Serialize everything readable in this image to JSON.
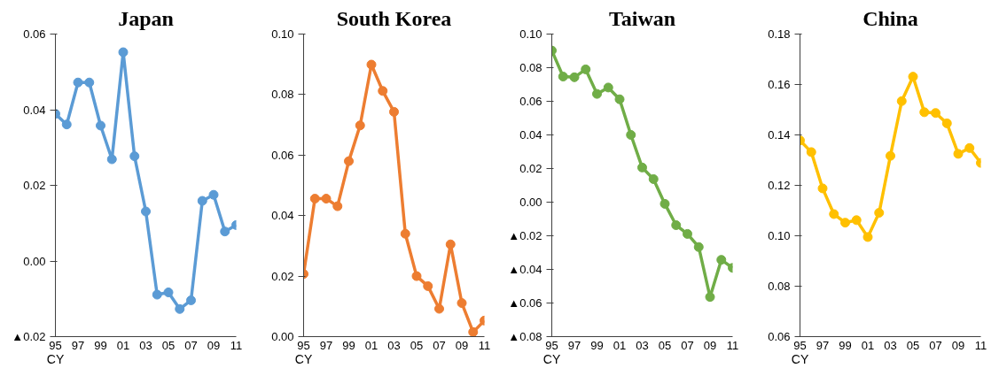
{
  "chart_data": [
    {
      "type": "line",
      "title": "Japan",
      "xlabel": "CY",
      "categories": [
        "95",
        null,
        "97",
        null,
        "99",
        null,
        "01",
        null,
        "03",
        null,
        "05",
        null,
        "07",
        null,
        "09",
        null,
        "11"
      ],
      "marker": "circle",
      "grid": false,
      "ylim": [
        -0.02,
        0.06
      ],
      "yticks": [
        {
          "value": -0.02,
          "label": "▲0.02"
        },
        {
          "value": 0.0,
          "label": "0.00"
        },
        0.02,
        0.04,
        0.06
      ],
      "series": [
        {
          "color": "#5b9bd5",
          "values": [
            0.0389,
            0.0361,
            0.0472,
            0.0472,
            0.0358,
            0.0269,
            0.0552,
            0.0277,
            0.0131,
            -0.0089,
            -0.0083,
            -0.0127,
            -0.0104,
            0.0159,
            0.0175,
            0.0078,
            0.0095
          ]
        }
      ]
    },
    {
      "type": "line",
      "title": "South Korea",
      "xlabel": "CY",
      "categories": [
        "95",
        null,
        "97",
        null,
        "99",
        null,
        "01",
        null,
        "03",
        null,
        "05",
        null,
        "07",
        null,
        "09",
        null,
        "11"
      ],
      "marker": "circle",
      "grid": false,
      "ylim": [
        0.0,
        0.1
      ],
      "yticks": [
        {
          "value": 0.0,
          "label": "0.00"
        },
        0.02,
        0.04,
        0.06,
        0.08,
        {
          "value": 0.1,
          "label": "0.10"
        }
      ],
      "series": [
        {
          "color": "#ed7d31",
          "values": [
            0.0207,
            0.0456,
            0.0456,
            0.0431,
            0.058,
            0.0698,
            0.0899,
            0.0812,
            0.0743,
            0.034,
            0.02,
            0.0167,
            0.0092,
            0.0305,
            0.0111,
            0.0015,
            0.0053
          ]
        }
      ]
    },
    {
      "type": "line",
      "title": "Taiwan",
      "xlabel": "CY",
      "categories": [
        "95",
        null,
        "97",
        null,
        "99",
        null,
        "01",
        null,
        "03",
        null,
        "05",
        null,
        "07",
        null,
        "09",
        null,
        "11"
      ],
      "marker": "circle",
      "grid": false,
      "ylim": [
        -0.08,
        0.1
      ],
      "yticks": [
        {
          "value": -0.08,
          "label": "▲0.08"
        },
        {
          "value": -0.06,
          "label": "▲0.06"
        },
        {
          "value": -0.04,
          "label": "▲0.04"
        },
        {
          "value": -0.02,
          "label": "▲0.02"
        },
        {
          "value": 0.0,
          "label": "0.00"
        },
        0.02,
        0.04,
        0.06,
        0.08,
        {
          "value": 0.1,
          "label": "0.10"
        }
      ],
      "series": [
        {
          "color": "#70ad47",
          "values": [
            0.0902,
            0.0747,
            0.0743,
            0.079,
            0.0644,
            0.0682,
            0.0612,
            0.04,
            0.0206,
            0.0137,
            -0.001,
            -0.0137,
            -0.0189,
            -0.0267,
            -0.0564,
            -0.0343,
            -0.0391
          ]
        }
      ]
    },
    {
      "type": "line",
      "title": "China",
      "xlabel": "CY",
      "categories": [
        "95",
        null,
        "97",
        null,
        "99",
        null,
        "01",
        null,
        "03",
        null,
        "05",
        null,
        "07",
        null,
        "09",
        null,
        "11"
      ],
      "marker": "circle",
      "grid": false,
      "ylim": [
        0.06,
        0.18
      ],
      "yticks": [
        0.06,
        0.08,
        {
          "value": 0.1,
          "label": "0.10"
        },
        0.12,
        0.14,
        0.16,
        0.18
      ],
      "series": [
        {
          "color": "#ffc000",
          "values": [
            0.1378,
            0.1332,
            0.1188,
            0.1086,
            0.1052,
            0.1062,
            0.0995,
            0.1091,
            0.1317,
            0.1534,
            0.1631,
            0.149,
            0.1487,
            0.1446,
            0.1325,
            0.1348,
            0.1289
          ]
        }
      ]
    }
  ]
}
